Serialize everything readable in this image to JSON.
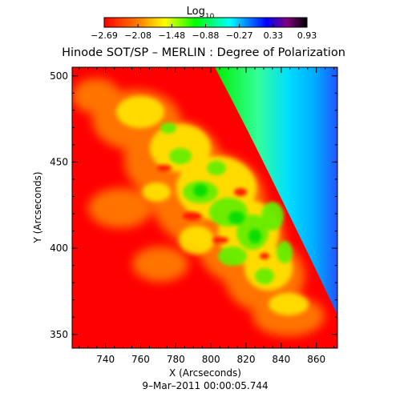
{
  "colorbar": {
    "label_main": "Log",
    "label_sub": "10",
    "ticks": [
      "−2.69",
      "−2.08",
      "−1.48",
      "−0.88",
      "−0.27",
      "0.33",
      "0.93"
    ]
  },
  "figure": {
    "title": "Hinode SOT/SP – MERLIN : Degree of Polarization",
    "xlabel": "X (Arcseconds)",
    "ylabel": "Y (Arcseconds)",
    "timestamp": "9–Mar–2011 00:00:05.744"
  },
  "axes": {
    "x": {
      "range": [
        721,
        872
      ],
      "ticks": [
        740,
        760,
        780,
        800,
        820,
        840,
        860
      ],
      "tick_labels": [
        "740",
        "760",
        "780",
        "800",
        "820",
        "840",
        "860"
      ]
    },
    "y": {
      "range": [
        342,
        505
      ],
      "ticks": [
        350,
        400,
        450,
        500
      ],
      "tick_labels": [
        "350",
        "400",
        "450",
        "500"
      ]
    }
  },
  "colors": {
    "axes": "#000000",
    "background": "#ffffff"
  }
}
